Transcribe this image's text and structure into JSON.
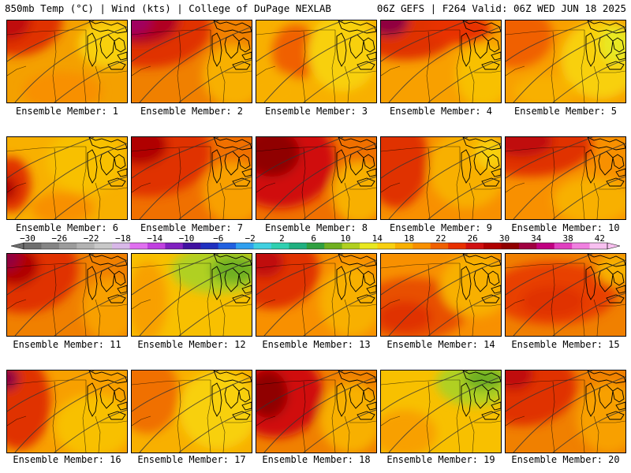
{
  "header": {
    "left_title": "850mb Temp (°C) | Wind (kts) | College of DuPage NEXLAB",
    "right_title": "06Z GEFS | F264 Valid: 06Z WED JUN 18 2025"
  },
  "colorbar": {
    "tick_labels": [
      "-30",
      "-26",
      "-22",
      "-18",
      "-14",
      "-10",
      "-6",
      "-2",
      "2",
      "6",
      "10",
      "14",
      "18",
      "22",
      "26",
      "30",
      "34",
      "38",
      "42"
    ],
    "colors": [
      "#6e6e6e",
      "#858585",
      "#9c9c9c",
      "#b3b3b3",
      "#c8c8c8",
      "#d8b8e8",
      "#e070f0",
      "#c040e0",
      "#8020c0",
      "#4010a0",
      "#2030c0",
      "#2060e0",
      "#30a0f0",
      "#40d0e0",
      "#30d0b0",
      "#20b080",
      "#30a040",
      "#70b020",
      "#b0d020",
      "#e8e820",
      "#f8d010",
      "#f8b000",
      "#f89000",
      "#f06000",
      "#e83000",
      "#d01010",
      "#b00000",
      "#900000",
      "#a00040",
      "#c00080",
      "#e040c0",
      "#f080e0",
      "#f8c0f0"
    ]
  },
  "panels": [
    {
      "caption": "Ensemble Member: 1",
      "bg": "#f4a000",
      "blobs": [
        {
          "cx": 10,
          "cy": 0,
          "rx": 60,
          "ry": 45,
          "color": "#e03000"
        },
        {
          "cx": 0,
          "cy": 0,
          "rx": 30,
          "ry": 25,
          "color": "#c01010"
        },
        {
          "cx": 130,
          "cy": 30,
          "rx": 40,
          "ry": 30,
          "color": "#f8d010"
        },
        {
          "cx": 70,
          "cy": 90,
          "rx": 50,
          "ry": 25,
          "color": "#f89000"
        }
      ]
    },
    {
      "caption": "Ensemble Member: 2",
      "bg": "#f08000",
      "blobs": [
        {
          "cx": 20,
          "cy": 10,
          "rx": 80,
          "ry": 50,
          "color": "#e03000"
        },
        {
          "cx": 10,
          "cy": 0,
          "rx": 50,
          "ry": 30,
          "color": "#b00020"
        },
        {
          "cx": 0,
          "cy": 0,
          "rx": 25,
          "ry": 18,
          "color": "#a00060"
        },
        {
          "cx": 130,
          "cy": 70,
          "rx": 40,
          "ry": 40,
          "color": "#f8b000"
        }
      ]
    },
    {
      "caption": "Ensemble Member: 3",
      "bg": "#f8b000",
      "blobs": [
        {
          "cx": 50,
          "cy": 40,
          "rx": 30,
          "ry": 35,
          "color": "#f06000"
        },
        {
          "cx": 110,
          "cy": 40,
          "rx": 45,
          "ry": 50,
          "color": "#f8d010"
        },
        {
          "cx": 20,
          "cy": 90,
          "rx": 40,
          "ry": 25,
          "color": "#f8b000"
        }
      ]
    },
    {
      "caption": "Ensemble Member: 4",
      "bg": "#f8a000",
      "blobs": [
        {
          "cx": 30,
          "cy": 10,
          "rx": 70,
          "ry": 40,
          "color": "#e03000"
        },
        {
          "cx": 10,
          "cy": 0,
          "rx": 25,
          "ry": 20,
          "color": "#900040"
        },
        {
          "cx": 100,
          "cy": 10,
          "rx": 40,
          "ry": 20,
          "color": "#e83000"
        },
        {
          "cx": 130,
          "cy": 70,
          "rx": 35,
          "ry": 40,
          "color": "#f8c000"
        }
      ]
    },
    {
      "caption": "Ensemble Member: 5",
      "bg": "#f8a000",
      "blobs": [
        {
          "cx": 10,
          "cy": 20,
          "rx": 50,
          "ry": 40,
          "color": "#f06000"
        },
        {
          "cx": 120,
          "cy": 50,
          "rx": 50,
          "ry": 50,
          "color": "#f8d010"
        },
        {
          "cx": 140,
          "cy": 30,
          "rx": 20,
          "ry": 25,
          "color": "#e8e820"
        },
        {
          "cx": 50,
          "cy": 90,
          "rx": 40,
          "ry": 20,
          "color": "#f8b000"
        }
      ]
    },
    {
      "caption": "Ensemble Member: 6",
      "bg": "#f8b000",
      "blobs": [
        {
          "cx": 5,
          "cy": 60,
          "rx": 25,
          "ry": 35,
          "color": "#e03000"
        },
        {
          "cx": 0,
          "cy": 65,
          "rx": 12,
          "ry": 15,
          "color": "#b00000"
        },
        {
          "cx": 100,
          "cy": 30,
          "rx": 50,
          "ry": 40,
          "color": "#f8c000"
        },
        {
          "cx": 70,
          "cy": 90,
          "rx": 40,
          "ry": 20,
          "color": "#f89000"
        }
      ]
    },
    {
      "caption": "Ensemble Member: 7",
      "bg": "#f07000",
      "blobs": [
        {
          "cx": 20,
          "cy": 20,
          "rx": 80,
          "ry": 55,
          "color": "#e03000"
        },
        {
          "cx": 10,
          "cy": 10,
          "rx": 35,
          "ry": 25,
          "color": "#b00000"
        },
        {
          "cx": 130,
          "cy": 70,
          "rx": 40,
          "ry": 40,
          "color": "#f8a000"
        }
      ]
    },
    {
      "caption": "Ensemble Member: 8",
      "bg": "#f07000",
      "blobs": [
        {
          "cx": 30,
          "cy": 30,
          "rx": 70,
          "ry": 60,
          "color": "#d01010"
        },
        {
          "cx": 20,
          "cy": 20,
          "rx": 35,
          "ry": 30,
          "color": "#900000"
        },
        {
          "cx": 130,
          "cy": 70,
          "rx": 35,
          "ry": 40,
          "color": "#f8b000"
        }
      ]
    },
    {
      "caption": "Ensemble Member: 9",
      "bg": "#f89000",
      "blobs": [
        {
          "cx": 20,
          "cy": 30,
          "rx": 40,
          "ry": 60,
          "color": "#e03000"
        },
        {
          "cx": 110,
          "cy": 40,
          "rx": 50,
          "ry": 50,
          "color": "#f8b000"
        },
        {
          "cx": 140,
          "cy": 20,
          "rx": 20,
          "ry": 20,
          "color": "#f8d010"
        }
      ]
    },
    {
      "caption": "Ensemble Member: 10",
      "bg": "#f89000",
      "blobs": [
        {
          "cx": 30,
          "cy": 10,
          "rx": 80,
          "ry": 40,
          "color": "#e03000"
        },
        {
          "cx": 20,
          "cy": 5,
          "rx": 40,
          "ry": 20,
          "color": "#c01010"
        },
        {
          "cx": 110,
          "cy": 80,
          "rx": 50,
          "ry": 30,
          "color": "#f8b000"
        }
      ]
    },
    {
      "caption": "Ensemble Member: 11",
      "bg": "#f08000",
      "blobs": [
        {
          "cx": 20,
          "cy": 20,
          "rx": 70,
          "ry": 55,
          "color": "#e03000"
        },
        {
          "cx": 10,
          "cy": 15,
          "rx": 30,
          "ry": 25,
          "color": "#b00000"
        },
        {
          "cx": 0,
          "cy": 5,
          "rx": 15,
          "ry": 15,
          "color": "#900040"
        },
        {
          "cx": 130,
          "cy": 70,
          "rx": 35,
          "ry": 40,
          "color": "#f8a000"
        }
      ]
    },
    {
      "caption": "Ensemble Member: 12",
      "bg": "#f8c000",
      "blobs": [
        {
          "cx": 110,
          "cy": 20,
          "rx": 60,
          "ry": 30,
          "color": "#b0d020"
        },
        {
          "cx": 130,
          "cy": 20,
          "rx": 30,
          "ry": 18,
          "color": "#70b020"
        },
        {
          "cx": 20,
          "cy": 60,
          "rx": 25,
          "ry": 50,
          "color": "#f8a000"
        }
      ]
    },
    {
      "caption": "Ensemble Member: 13",
      "bg": "#f89000",
      "blobs": [
        {
          "cx": 20,
          "cy": 20,
          "rx": 60,
          "ry": 50,
          "color": "#e03000"
        },
        {
          "cx": 10,
          "cy": 10,
          "rx": 25,
          "ry": 20,
          "color": "#c01010"
        },
        {
          "cx": 120,
          "cy": 60,
          "rx": 40,
          "ry": 45,
          "color": "#f8b000"
        }
      ]
    },
    {
      "caption": "Ensemble Member: 14",
      "bg": "#f89000",
      "blobs": [
        {
          "cx": 40,
          "cy": 70,
          "rx": 70,
          "ry": 40,
          "color": "#e85000"
        },
        {
          "cx": 30,
          "cy": 80,
          "rx": 35,
          "ry": 20,
          "color": "#e03000"
        },
        {
          "cx": 120,
          "cy": 40,
          "rx": 45,
          "ry": 40,
          "color": "#f8b000"
        }
      ]
    },
    {
      "caption": "Ensemble Member: 15",
      "bg": "#f08000",
      "blobs": [
        {
          "cx": 60,
          "cy": 50,
          "rx": 80,
          "ry": 40,
          "color": "#e84000"
        },
        {
          "cx": 60,
          "cy": 60,
          "rx": 40,
          "ry": 20,
          "color": "#e03000"
        },
        {
          "cx": 140,
          "cy": 20,
          "rx": 25,
          "ry": 20,
          "color": "#f8b000"
        }
      ]
    },
    {
      "caption": "Ensemble Member: 16",
      "bg": "#f8a000",
      "blobs": [
        {
          "cx": 15,
          "cy": 40,
          "rx": 40,
          "ry": 60,
          "color": "#e03000"
        },
        {
          "cx": 0,
          "cy": 10,
          "rx": 15,
          "ry": 15,
          "color": "#900040"
        },
        {
          "cx": 110,
          "cy": 70,
          "rx": 50,
          "ry": 40,
          "color": "#f8c000"
        }
      ]
    },
    {
      "caption": "Ensemble Member: 17",
      "bg": "#f8b000",
      "blobs": [
        {
          "cx": 20,
          "cy": 30,
          "rx": 40,
          "ry": 50,
          "color": "#f07000"
        },
        {
          "cx": 110,
          "cy": 50,
          "rx": 50,
          "ry": 50,
          "color": "#f8d010"
        }
      ]
    },
    {
      "caption": "Ensemble Member: 18",
      "bg": "#f08000",
      "blobs": [
        {
          "cx": 25,
          "cy": 30,
          "rx": 60,
          "ry": 55,
          "color": "#d01010"
        },
        {
          "cx": 15,
          "cy": 30,
          "rx": 25,
          "ry": 30,
          "color": "#900000"
        },
        {
          "cx": 120,
          "cy": 60,
          "rx": 40,
          "ry": 45,
          "color": "#f8b000"
        }
      ]
    },
    {
      "caption": "Ensemble Member: 19",
      "bg": "#f8c000",
      "blobs": [
        {
          "cx": 120,
          "cy": 15,
          "rx": 50,
          "ry": 30,
          "color": "#b0d020"
        },
        {
          "cx": 130,
          "cy": 10,
          "rx": 25,
          "ry": 15,
          "color": "#70b020"
        },
        {
          "cx": 30,
          "cy": 80,
          "rx": 40,
          "ry": 30,
          "color": "#f8a000"
        }
      ]
    },
    {
      "caption": "Ensemble Member: 20",
      "bg": "#f08000",
      "blobs": [
        {
          "cx": 20,
          "cy": 20,
          "rx": 70,
          "ry": 50,
          "color": "#e03000"
        },
        {
          "cx": 10,
          "cy": 5,
          "rx": 25,
          "ry": 20,
          "color": "#c01010"
        },
        {
          "cx": 130,
          "cy": 60,
          "rx": 40,
          "ry": 45,
          "color": "#f8a000"
        }
      ]
    }
  ]
}
